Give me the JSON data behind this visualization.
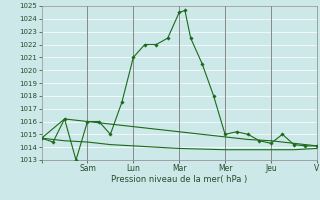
{
  "xlabel": "Pression niveau de la mer( hPa )",
  "ylim": [
    1013,
    1025
  ],
  "yticks": [
    1013,
    1014,
    1015,
    1016,
    1017,
    1018,
    1019,
    1020,
    1021,
    1022,
    1023,
    1024,
    1025
  ],
  "xtick_labels": [
    "",
    "Sam",
    "Lun",
    "Mar",
    "Mer",
    "Jeu",
    "V"
  ],
  "xtick_positions": [
    0,
    2,
    4,
    6,
    8,
    10,
    12
  ],
  "bg_color": "#cce8e8",
  "grid_color": "#ffffff",
  "line_color": "#1a6b1a",
  "line1_x": [
    0,
    0.5,
    1,
    1.5,
    2,
    2.5,
    3,
    3.5,
    4,
    4.5,
    5,
    5.5,
    6,
    6.25,
    6.5,
    7,
    7.5,
    8,
    8.5,
    9,
    9.5,
    10,
    10.5,
    11,
    11.5,
    12
  ],
  "line1_y": [
    1014.7,
    1014.4,
    1016.2,
    1013.0,
    1016.0,
    1016.0,
    1015.0,
    1017.5,
    1021.0,
    1022.0,
    1022.0,
    1022.5,
    1024.5,
    1024.65,
    1022.5,
    1020.5,
    1018.0,
    1015.0,
    1015.2,
    1015.0,
    1014.5,
    1014.3,
    1015.0,
    1014.2,
    1014.1,
    1014.1
  ],
  "line2_x": [
    0,
    1,
    2,
    3,
    4,
    5,
    6,
    7,
    8,
    9,
    10,
    11,
    12
  ],
  "line2_y": [
    1014.7,
    1016.2,
    1016.0,
    1015.8,
    1015.6,
    1015.4,
    1015.2,
    1015.0,
    1014.8,
    1014.6,
    1014.5,
    1014.3,
    1014.1
  ],
  "line3_x": [
    0,
    1,
    2,
    3,
    4,
    5,
    6,
    7,
    8,
    9,
    10,
    11,
    12
  ],
  "line3_y": [
    1014.7,
    1014.5,
    1014.4,
    1014.2,
    1014.1,
    1014.0,
    1013.9,
    1013.85,
    1013.8,
    1013.8,
    1013.8,
    1013.8,
    1013.9
  ],
  "yticklabel_fontsize": 5.0,
  "xticklabel_fontsize": 5.5,
  "xlabel_fontsize": 6.0
}
